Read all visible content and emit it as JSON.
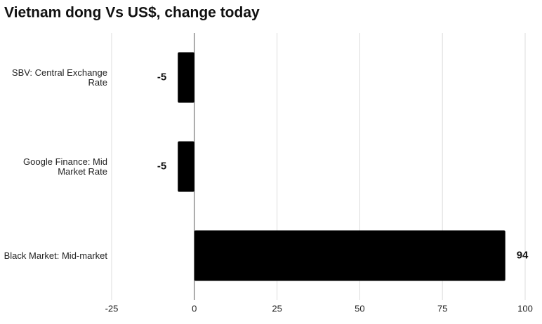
{
  "chart_data": {
    "type": "barh",
    "title": "Vietnam dong Vs US$, change today",
    "categories": [
      "SBV: Central Exchange Rate",
      "Google Finance: Mid Market Rate",
      "Black Market: Mid-market"
    ],
    "values": [
      -5,
      -5,
      94
    ],
    "color": "#000000",
    "xlim": [
      -25,
      100
    ],
    "xticks": [
      -25,
      0,
      25,
      50,
      75,
      100
    ],
    "grid": true
  }
}
